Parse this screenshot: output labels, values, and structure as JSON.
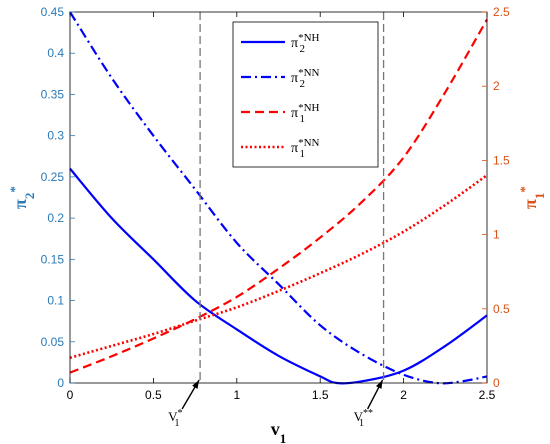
{
  "chart_data": {
    "type": "line",
    "x_range": [
      0,
      2.5
    ],
    "x_ticks": [
      "0",
      "0.5",
      "1",
      "1.5",
      "2",
      "2.5"
    ],
    "x_tick_values": [
      0,
      0.5,
      1,
      1.5,
      2,
      2.5
    ],
    "xlabel": {
      "main": "v",
      "sub": "1"
    },
    "y_left": {
      "range": [
        0,
        0.45
      ],
      "ticks": [
        "0",
        "0.05",
        "0.1",
        "0.15",
        "0.2",
        "0.25",
        "0.3",
        "0.35",
        "0.4",
        "0.45"
      ],
      "tick_values": [
        0,
        0.05,
        0.1,
        0.15,
        0.2,
        0.25,
        0.3,
        0.35,
        0.4,
        0.45
      ],
      "label": {
        "main": "π",
        "sub": "2",
        "sup": "*"
      },
      "color": "#2a7ab8"
    },
    "y_right": {
      "range": [
        0,
        2.5
      ],
      "ticks": [
        "0",
        "0.5",
        "1",
        "1.5",
        "2",
        "2.5"
      ],
      "tick_values": [
        0,
        0.5,
        1,
        1.5,
        2,
        2.5
      ],
      "label": {
        "main": "π",
        "sub": "1",
        "sup": "*"
      },
      "color": "#d95319"
    },
    "legend_position": "top-center",
    "series": [
      {
        "name": {
          "main": "π",
          "sub": "2",
          "sup": "*NH"
        },
        "axis": "left",
        "color": "#0000ff",
        "style": "solid",
        "x": [
          0,
          0.25,
          0.5,
          0.75,
          1.0,
          1.25,
          1.5,
          1.6,
          1.75,
          2.0,
          2.25,
          2.5
        ],
        "y": [
          0.26,
          0.2,
          0.15,
          0.1,
          0.065,
          0.033,
          0.008,
          0.0,
          0.002,
          0.015,
          0.045,
          0.082
        ]
      },
      {
        "name": {
          "main": "π",
          "sub": "2",
          "sup": "*NN"
        },
        "axis": "left",
        "color": "#0000ff",
        "style": "dashdot",
        "x": [
          0,
          0.25,
          0.5,
          0.75,
          1.0,
          1.25,
          1.5,
          1.75,
          2.0,
          2.2,
          2.35,
          2.5
        ],
        "y": [
          0.45,
          0.37,
          0.3,
          0.235,
          0.17,
          0.12,
          0.07,
          0.035,
          0.01,
          0.0,
          0.002,
          0.008
        ]
      },
      {
        "name": {
          "main": "π",
          "sub": "1",
          "sup": "*NH"
        },
        "axis": "right",
        "color": "#ff0000",
        "style": "dashed",
        "x": [
          0,
          0.25,
          0.5,
          0.75,
          1.0,
          1.25,
          1.5,
          1.75,
          2.0,
          2.25,
          2.5
        ],
        "y": [
          0.07,
          0.18,
          0.3,
          0.43,
          0.58,
          0.77,
          0.98,
          1.22,
          1.52,
          1.96,
          2.45
        ]
      },
      {
        "name": {
          "main": "π",
          "sub": "1",
          "sup": "*NN"
        },
        "axis": "right",
        "color": "#ff0000",
        "style": "dotted",
        "x": [
          0,
          0.25,
          0.5,
          0.75,
          1.0,
          1.25,
          1.5,
          1.75,
          2.0,
          2.25,
          2.5
        ],
        "y": [
          0.17,
          0.25,
          0.33,
          0.42,
          0.51,
          0.62,
          0.74,
          0.87,
          1.02,
          1.2,
          1.4
        ]
      }
    ],
    "vlines": [
      {
        "x": 0.78,
        "label": {
          "main": "V",
          "sub": "1",
          "sup": "*"
        }
      },
      {
        "x": 1.88,
        "label": {
          "main": "V",
          "sub": "1",
          "sup": "**"
        }
      }
    ]
  }
}
